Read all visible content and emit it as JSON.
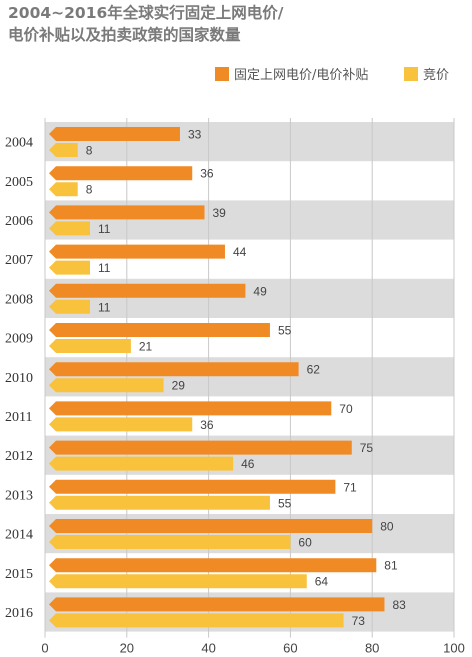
{
  "title_lines": [
    "2004~2016年全球实行固定上网电价/",
    "电价补贴以及拍卖政策的国家数量"
  ],
  "legend": [
    {
      "label": "固定上网电价/电价补贴",
      "color": "#f08a24"
    },
    {
      "label": "竞价",
      "color": "#f9c23c"
    }
  ],
  "colors": {
    "band": "#dcdcdc",
    "grid": "#c8c8c8",
    "orange": "#f08a24",
    "yellow": "#f9c23c"
  },
  "chart_data": {
    "type": "bar",
    "orientation": "horizontal",
    "title": "2004~2016年全球实行固定上网电价/电价补贴以及拍卖政策的国家数量",
    "categories": [
      "2004",
      "2005",
      "2006",
      "2007",
      "2008",
      "2009",
      "2010",
      "2011",
      "2012",
      "2013",
      "2014",
      "2015",
      "2016"
    ],
    "series": [
      {
        "name": "固定上网电价/电价补贴",
        "values": [
          33,
          36,
          39,
          44,
          49,
          55,
          62,
          70,
          75,
          71,
          80,
          81,
          83
        ]
      },
      {
        "name": "竞价",
        "values": [
          8,
          8,
          11,
          11,
          11,
          21,
          29,
          36,
          46,
          55,
          60,
          64,
          73
        ]
      }
    ],
    "xlim": [
      0,
      100
    ],
    "xticks": [
      0,
      20,
      40,
      60,
      80,
      100
    ],
    "grid": true,
    "legend_position": "top-right",
    "data_labels": true
  }
}
